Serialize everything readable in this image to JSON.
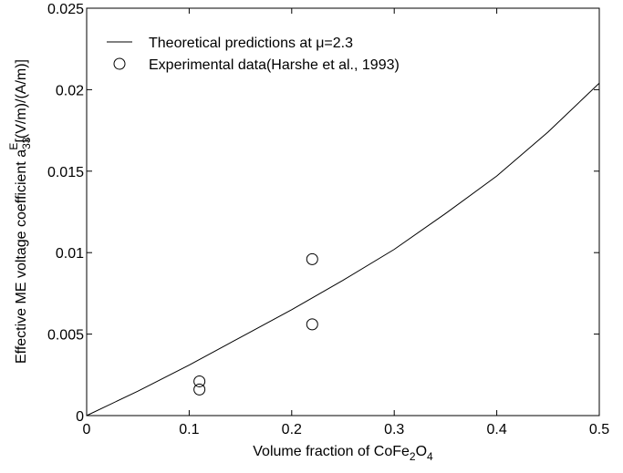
{
  "chart_data": {
    "type": "line",
    "xlabel": [
      "Volume fraction of CoFe",
      "2",
      "O",
      "4"
    ],
    "ylabel": [
      "Effective ME voltage coefficient a",
      "33",
      "E",
      "[(V/m)/(A/m)]"
    ],
    "xlim": [
      0,
      0.5
    ],
    "xticks": [
      0,
      0.1,
      0.2,
      0.3,
      0.4,
      0.5
    ],
    "ylim": [
      0,
      0.025
    ],
    "yticks": [
      0,
      0.005,
      0.01,
      0.015,
      0.02,
      0.025
    ],
    "legend": "upper left",
    "series": [
      {
        "name": "Theoretical predictions at μ=2.3",
        "color": "#000000",
        "style": "line",
        "x": [
          0,
          0.05,
          0.1,
          0.15,
          0.2,
          0.25,
          0.3,
          0.35,
          0.4,
          0.45,
          0.5
        ],
        "values": [
          0,
          0.0015,
          0.0031,
          0.0048,
          0.0065,
          0.0083,
          0.0102,
          0.0124,
          0.0147,
          0.0174,
          0.0204
        ]
      },
      {
        "name": "Experimental data(Harshe et al., 1993)",
        "color": "#000000",
        "style": "markers",
        "x": [
          0.11,
          0.11,
          0.22,
          0.22
        ],
        "values": [
          0.0021,
          0.0016,
          0.0096,
          0.0056
        ]
      }
    ]
  }
}
